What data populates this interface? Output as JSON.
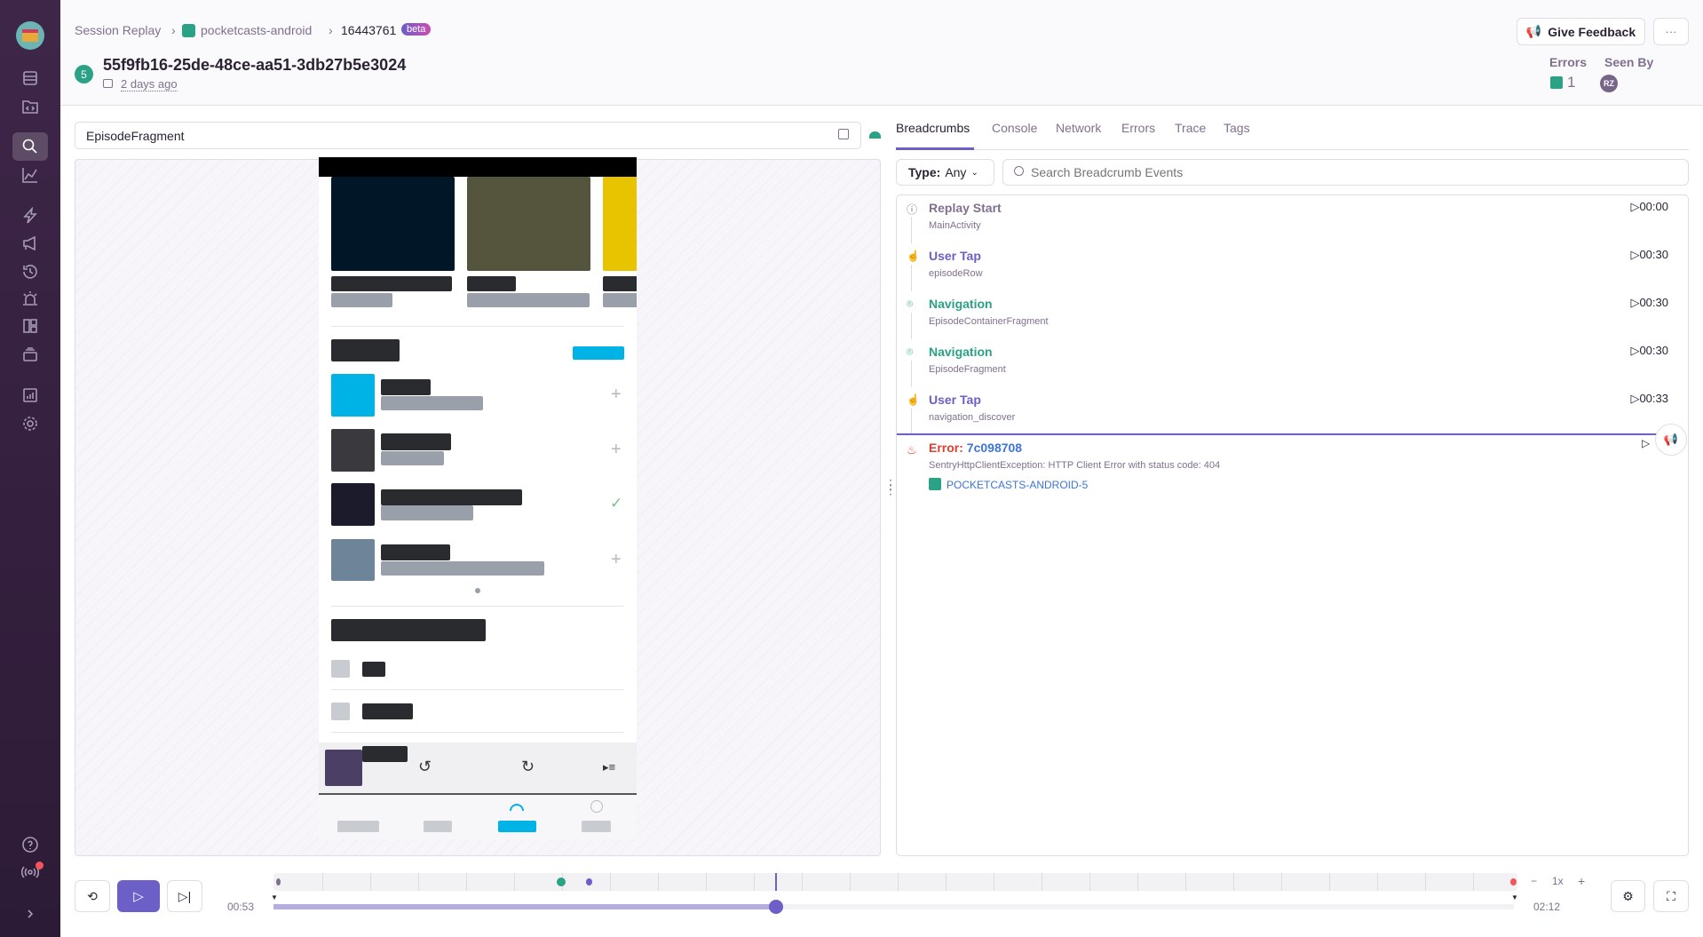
{
  "sidebar": {
    "items": [
      "logo",
      "issues",
      "projects",
      "replays",
      "performance",
      "releases",
      "user-feedback",
      "crons",
      "alerts",
      "dashboards",
      "discover",
      "stats",
      "settings",
      "help",
      "whats-new",
      "collapse"
    ],
    "active": "replays"
  },
  "header": {
    "breadcrumb": [
      "Session Replay",
      "pocketcasts-android",
      "16443761"
    ],
    "beta": "beta",
    "badge": "5",
    "title": "55f9fb16-25de-48ce-aa51-3db27b5e3024",
    "date": "2 days ago",
    "feedback": "Give Feedback",
    "more": "···",
    "errors_label": "Errors",
    "errors_count": "1",
    "seen_by_label": "Seen By",
    "avatar": "RZ"
  },
  "player": {
    "url": "EpisodeFragment"
  },
  "tabs": [
    "Breadcrumbs",
    "Console",
    "Network",
    "Errors",
    "Trace",
    "Tags"
  ],
  "filter": {
    "type_label": "Type:",
    "type_value": "Any",
    "search_placeholder": "Search Breadcrumb Events"
  },
  "breadcrumbs": [
    {
      "title": "Replay Start",
      "sub": "MainActivity",
      "time": "00:00",
      "color": "#80708f",
      "icon": "info-icon"
    },
    {
      "title": "User Tap",
      "sub": "episodeRow",
      "time": "00:30",
      "color": "#6c5fc7",
      "icon": "tap-icon"
    },
    {
      "title": "Navigation",
      "sub": "EpisodeContainerFragment",
      "time": "00:30",
      "color": "#2ba185",
      "icon": "location-icon"
    },
    {
      "title": "Navigation",
      "sub": "EpisodeFragment",
      "time": "00:30",
      "color": "#2ba185",
      "icon": "location-icon"
    },
    {
      "title": "User Tap",
      "sub": "navigation_discover",
      "time": "00:33",
      "color": "#6c5fc7",
      "icon": "tap-icon"
    }
  ],
  "error": {
    "prefix": "Error:",
    "id": "7c098708",
    "message": "SentryHttpClientException: HTTP Client Error with status code: 404",
    "issue": "POCKETCASTS-ANDROID-5"
  },
  "controls": {
    "start_time": "00:53",
    "end_time": "02:12",
    "progress": 0.405,
    "speed": "1x",
    "minus": "−",
    "plus": "+"
  },
  "colors": {
    "accent": "#6c5fc7",
    "error": "#e03e2f",
    "success": "#2ba185"
  }
}
